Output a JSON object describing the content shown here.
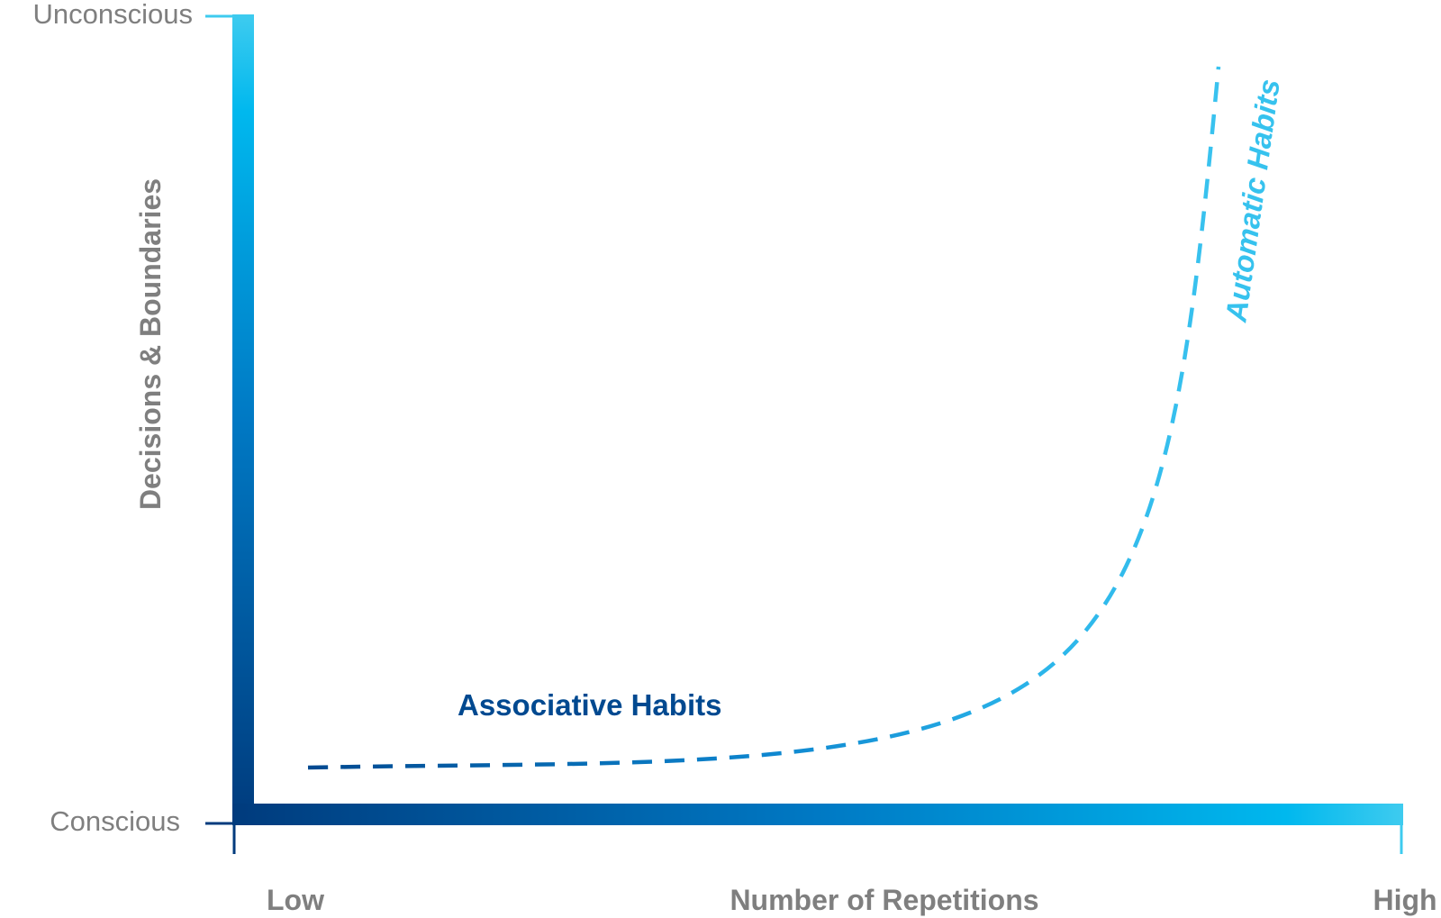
{
  "y_axis": {
    "title": "Decisions & Boundaries",
    "top_label": "Unconscious",
    "bottom_label": "Conscious"
  },
  "x_axis": {
    "title": "Number of Repetitions",
    "left_label": "Low",
    "right_label": "High"
  },
  "curve_labels": {
    "associative": "Associative Habits",
    "automatic": "Automatic Habits"
  },
  "colors": {
    "dark_blue": "#004990",
    "mid_blue": "#0077c8",
    "light_blue": "#36c2ee",
    "label_gray": "#7f7f7f"
  }
}
